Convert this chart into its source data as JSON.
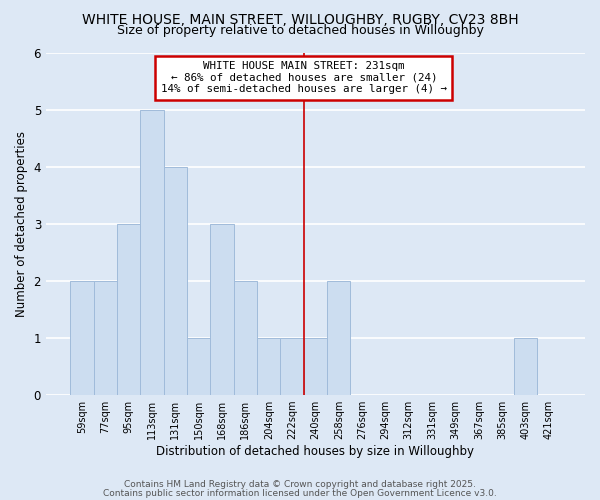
{
  "title1": "WHITE HOUSE, MAIN STREET, WILLOUGHBY, RUGBY, CV23 8BH",
  "title2": "Size of property relative to detached houses in Willoughby",
  "xlabel": "Distribution of detached houses by size in Willoughby",
  "ylabel": "Number of detached properties",
  "bar_labels": [
    "59sqm",
    "77sqm",
    "95sqm",
    "113sqm",
    "131sqm",
    "150sqm",
    "168sqm",
    "186sqm",
    "204sqm",
    "222sqm",
    "240sqm",
    "258sqm",
    "276sqm",
    "294sqm",
    "312sqm",
    "331sqm",
    "349sqm",
    "367sqm",
    "385sqm",
    "403sqm",
    "421sqm"
  ],
  "bar_values": [
    2,
    2,
    3,
    5,
    4,
    1,
    3,
    2,
    1,
    1,
    1,
    2,
    0,
    0,
    0,
    0,
    0,
    0,
    0,
    1,
    0
  ],
  "bar_color": "#ccddf0",
  "bar_edge_color": "#a0bbda",
  "ylim": [
    0,
    6
  ],
  "yticks": [
    0,
    1,
    2,
    3,
    4,
    5,
    6
  ],
  "red_line_x": 9.5,
  "annotation_title": "WHITE HOUSE MAIN STREET: 231sqm",
  "annotation_line1": "← 86% of detached houses are smaller (24)",
  "annotation_line2": "14% of semi-detached houses are larger (4) →",
  "annotation_box_color": "#ffffff",
  "annotation_box_edge_color": "#cc0000",
  "red_line_color": "#cc0000",
  "footer1": "Contains HM Land Registry data © Crown copyright and database right 2025.",
  "footer2": "Contains public sector information licensed under the Open Government Licence v3.0.",
  "background_color": "#dde8f5",
  "grid_color": "#ffffff",
  "title_fontsize": 10,
  "subtitle_fontsize": 9
}
